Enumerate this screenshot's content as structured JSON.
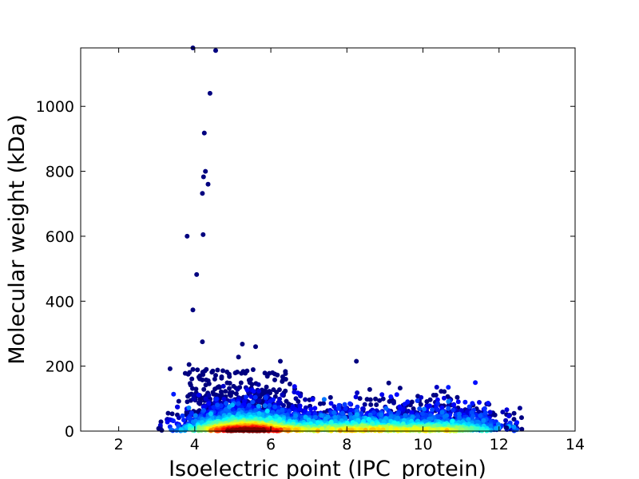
{
  "chart_data": {
    "type": "scatter",
    "title": "",
    "xlabel": "Isoelectric point (IPC_protein)",
    "ylabel": "Molecular weight (kDa)",
    "xlim": [
      1,
      14
    ],
    "ylim": [
      0,
      1180
    ],
    "xticks": [
      2,
      4,
      6,
      8,
      10,
      12,
      14
    ],
    "yticks": [
      0,
      200,
      400,
      600,
      800,
      1000
    ],
    "grid": false,
    "legend": "none",
    "color_encoding": "point density (jet colormap: blue = low, red = high)",
    "colormap": [
      "#00007f",
      "#0000ff",
      "#007fff",
      "#00ffff",
      "#7fff7f",
      "#ffff00",
      "#ff7f00",
      "#ff0000",
      "#7f0000"
    ],
    "density_core": {
      "x_center": 5.3,
      "y_center": 25,
      "x_range": [
        3.0,
        12.6
      ],
      "y_range": [
        0,
        150
      ]
    },
    "outliers": [
      {
        "x": 3.95,
        "y": 1180
      },
      {
        "x": 4.55,
        "y": 1172
      },
      {
        "x": 4.4,
        "y": 1040
      },
      {
        "x": 4.25,
        "y": 918
      },
      {
        "x": 4.28,
        "y": 800
      },
      {
        "x": 4.23,
        "y": 783
      },
      {
        "x": 4.35,
        "y": 760
      },
      {
        "x": 4.2,
        "y": 732
      },
      {
        "x": 4.22,
        "y": 605
      },
      {
        "x": 3.8,
        "y": 600
      },
      {
        "x": 4.05,
        "y": 482
      },
      {
        "x": 3.95,
        "y": 373
      },
      {
        "x": 4.2,
        "y": 275
      },
      {
        "x": 5.25,
        "y": 268
      },
      {
        "x": 5.6,
        "y": 260
      },
      {
        "x": 5.15,
        "y": 228
      },
      {
        "x": 6.25,
        "y": 215
      },
      {
        "x": 8.25,
        "y": 215
      },
      {
        "x": 3.85,
        "y": 205
      },
      {
        "x": 3.95,
        "y": 190
      },
      {
        "x": 3.35,
        "y": 192
      },
      {
        "x": 3.75,
        "y": 178
      },
      {
        "x": 4.6,
        "y": 188
      },
      {
        "x": 9.1,
        "y": 148
      },
      {
        "x": 6.5,
        "y": 145
      },
      {
        "x": 8.6,
        "y": 128
      },
      {
        "x": 3.3,
        "y": 55
      },
      {
        "x": 3.05,
        "y": 8
      },
      {
        "x": 12.6,
        "y": 6
      },
      {
        "x": 12.2,
        "y": 10
      }
    ]
  }
}
